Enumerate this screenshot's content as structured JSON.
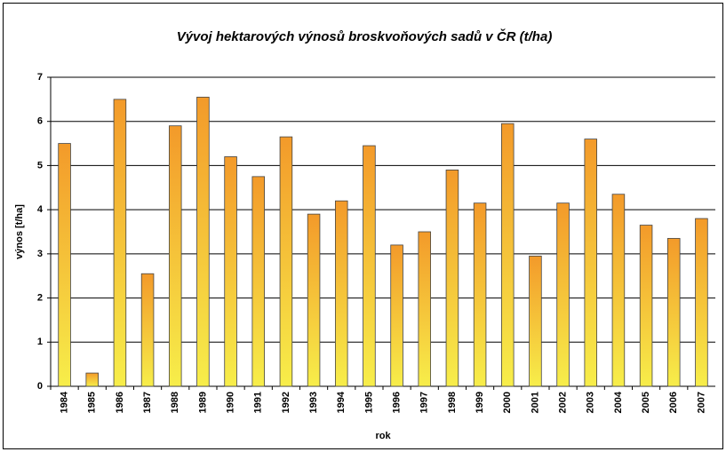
{
  "chart_data": {
    "type": "bar",
    "title": "Vývoj hektarových výnosů broskvoňových sadů v ČR (t/ha)",
    "xlabel": "rok",
    "ylabel": "výnos [t/ha]",
    "categories": [
      "1984",
      "1985",
      "1986",
      "1987",
      "1988",
      "1989",
      "1990",
      "1991",
      "1992",
      "1993",
      "1994",
      "1995",
      "1996",
      "1997",
      "1998",
      "1999",
      "2000",
      "2001",
      "2002",
      "2003",
      "2004",
      "2005",
      "2006",
      "2007"
    ],
    "values": [
      5.5,
      0.3,
      6.5,
      2.55,
      5.9,
      6.55,
      5.2,
      4.75,
      5.65,
      3.9,
      4.2,
      5.45,
      3.2,
      3.5,
      4.9,
      4.15,
      5.95,
      2.95,
      4.15,
      5.6,
      4.35,
      3.65,
      3.35,
      3.8
    ],
    "gradient": [
      "#f39a2a",
      "#f7ee4a"
    ],
    "ylim": [
      0,
      7
    ],
    "yticks": [
      0,
      1,
      2,
      3,
      4,
      5,
      6,
      7
    ],
    "grid": true
  }
}
